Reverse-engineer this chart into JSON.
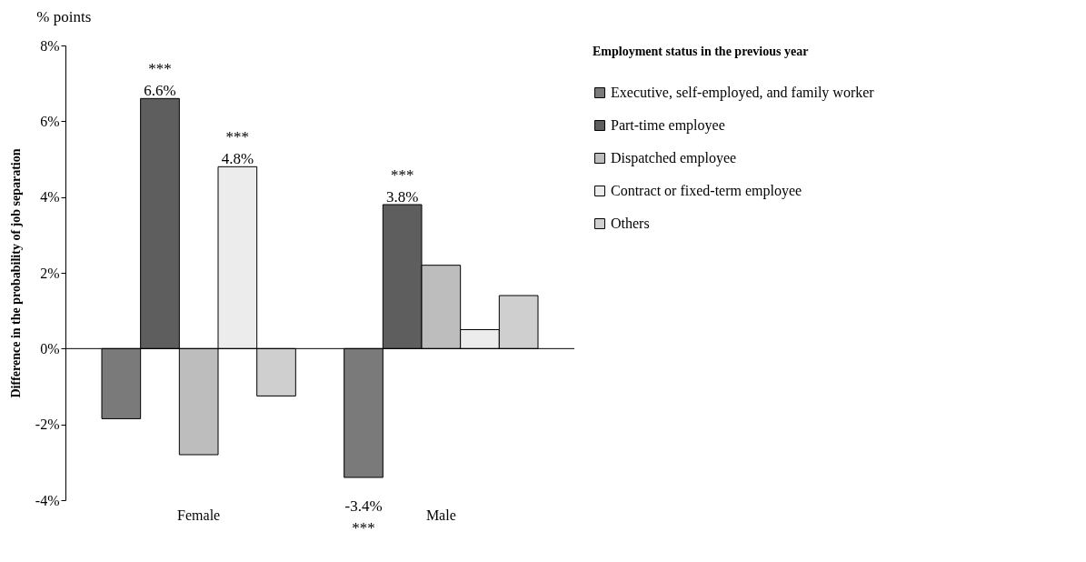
{
  "chart_data": {
    "type": "bar",
    "ylabel": "Difference in the probability of job separation",
    "legend_title": "Employment status in the previous year",
    "categories": [
      "Female",
      "Male"
    ],
    "series": [
      {
        "name": "Executive, self-employed, and family worker",
        "color": "#7a7a7a",
        "values": [
          -1.85,
          -3.4
        ],
        "value_labels": [
          null,
          "-3.4% ***"
        ]
      },
      {
        "name": "Part-time  employee",
        "color": "#5e5e5e",
        "values": [
          6.6,
          3.8
        ],
        "value_labels": [
          "*** 6.6%",
          "*** 3.8%"
        ]
      },
      {
        "name": "Dispatched employee",
        "color": "#bdbdbd",
        "values": [
          -2.8,
          2.2
        ],
        "value_labels": [
          null,
          null
        ]
      },
      {
        "name": "Contract or fixed-term employee",
        "color": "#ececec",
        "values": [
          4.8,
          0.5
        ],
        "value_labels": [
          "*** 4.8%",
          null
        ]
      },
      {
        "name": "Others",
        "color": "#cfcfcf",
        "values": [
          -1.25,
          1.4
        ],
        "value_labels": [
          null,
          null
        ]
      }
    ],
    "ylim": [
      -4,
      8
    ],
    "yticks": [
      {
        "value": -4,
        "label": "-4%"
      },
      {
        "value": -2,
        "label": "-2%"
      },
      {
        "value": 0,
        "label": "0%"
      },
      {
        "value": 2,
        "label": "2%"
      },
      {
        "value": 4,
        "label": "4%"
      },
      {
        "value": 6,
        "label": "6%"
      },
      {
        "value": 8,
        "label": "8%"
      }
    ],
    "ref_lines": [
      {
        "axis": "y",
        "value": 0,
        "color": "#000000"
      }
    ],
    "annotations": [
      "% points"
    ],
    "grid": false,
    "legend": "right"
  }
}
